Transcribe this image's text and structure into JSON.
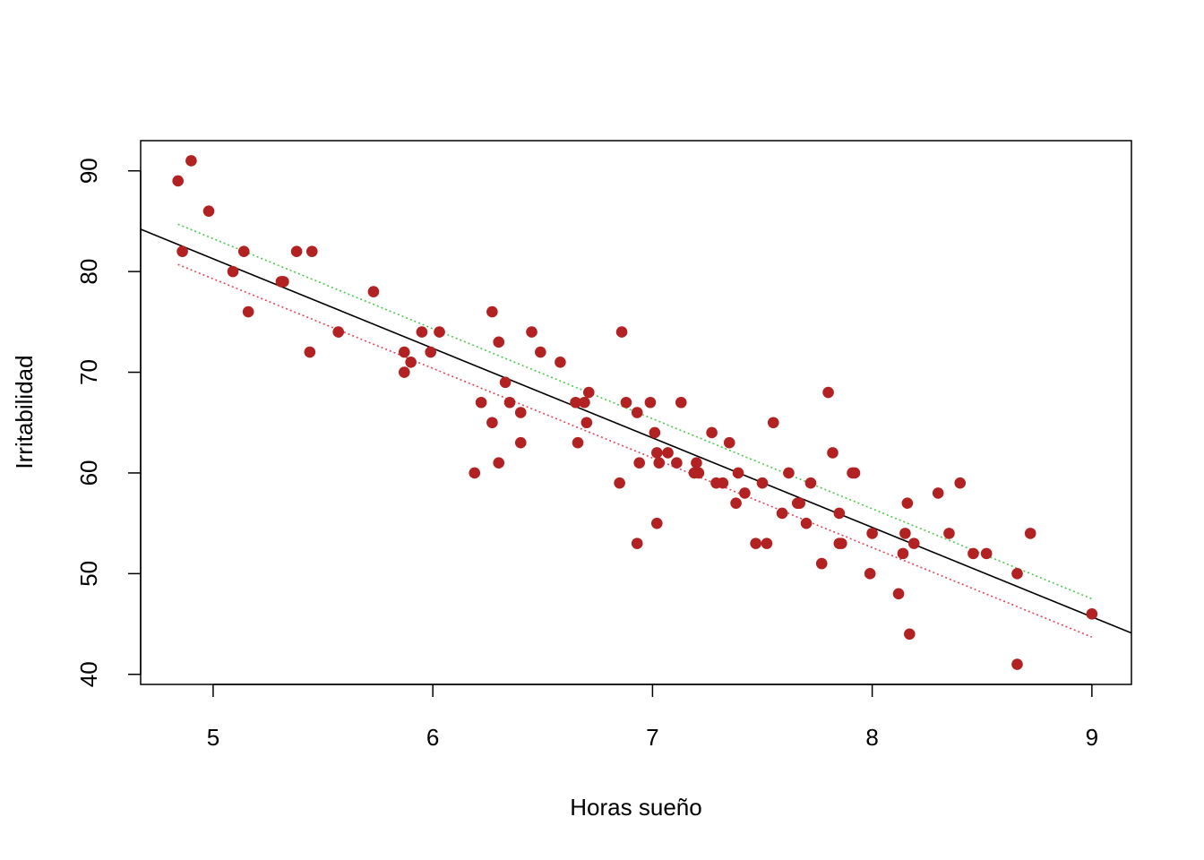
{
  "chart_data": {
    "type": "scatter",
    "title": "",
    "xlabel": "Horas sueño",
    "ylabel": "Irritabilidad",
    "xlim": [
      4.67,
      9.18
    ],
    "ylim": [
      39,
      93
    ],
    "x_ticks": [
      "5",
      "6",
      "7",
      "8",
      "9"
    ],
    "y_ticks": [
      "40",
      "50",
      "60",
      "70",
      "80",
      "90"
    ],
    "grid": false,
    "legend": "none",
    "point_color": "#b22222",
    "points": [
      {
        "x": 4.84,
        "y": 89
      },
      {
        "x": 4.9,
        "y": 91
      },
      {
        "x": 4.86,
        "y": 82
      },
      {
        "x": 4.98,
        "y": 86
      },
      {
        "x": 5.09,
        "y": 80
      },
      {
        "x": 5.14,
        "y": 82
      },
      {
        "x": 5.16,
        "y": 76
      },
      {
        "x": 5.31,
        "y": 79
      },
      {
        "x": 5.32,
        "y": 79
      },
      {
        "x": 5.38,
        "y": 82
      },
      {
        "x": 5.45,
        "y": 82
      },
      {
        "x": 5.44,
        "y": 72
      },
      {
        "x": 5.57,
        "y": 74
      },
      {
        "x": 5.73,
        "y": 78
      },
      {
        "x": 5.87,
        "y": 72
      },
      {
        "x": 5.87,
        "y": 70
      },
      {
        "x": 5.9,
        "y": 71
      },
      {
        "x": 5.95,
        "y": 74
      },
      {
        "x": 5.99,
        "y": 72
      },
      {
        "x": 6.03,
        "y": 74
      },
      {
        "x": 6.19,
        "y": 60
      },
      {
        "x": 6.22,
        "y": 67
      },
      {
        "x": 6.27,
        "y": 76
      },
      {
        "x": 6.27,
        "y": 65
      },
      {
        "x": 6.3,
        "y": 73
      },
      {
        "x": 6.3,
        "y": 61
      },
      {
        "x": 6.33,
        "y": 69
      },
      {
        "x": 6.35,
        "y": 67
      },
      {
        "x": 6.4,
        "y": 66
      },
      {
        "x": 6.4,
        "y": 63
      },
      {
        "x": 6.45,
        "y": 74
      },
      {
        "x": 6.49,
        "y": 72
      },
      {
        "x": 6.58,
        "y": 71
      },
      {
        "x": 6.65,
        "y": 67
      },
      {
        "x": 6.66,
        "y": 63
      },
      {
        "x": 6.69,
        "y": 67
      },
      {
        "x": 6.7,
        "y": 65
      },
      {
        "x": 6.71,
        "y": 68
      },
      {
        "x": 6.85,
        "y": 59
      },
      {
        "x": 6.86,
        "y": 74
      },
      {
        "x": 6.88,
        "y": 67
      },
      {
        "x": 6.93,
        "y": 66
      },
      {
        "x": 6.94,
        "y": 61
      },
      {
        "x": 6.93,
        "y": 53
      },
      {
        "x": 6.99,
        "y": 67
      },
      {
        "x": 7.01,
        "y": 64
      },
      {
        "x": 7.02,
        "y": 62
      },
      {
        "x": 7.03,
        "y": 61
      },
      {
        "x": 7.02,
        "y": 55
      },
      {
        "x": 7.07,
        "y": 62
      },
      {
        "x": 7.11,
        "y": 61
      },
      {
        "x": 7.13,
        "y": 67
      },
      {
        "x": 7.19,
        "y": 60
      },
      {
        "x": 7.2,
        "y": 61
      },
      {
        "x": 7.21,
        "y": 60
      },
      {
        "x": 7.27,
        "y": 64
      },
      {
        "x": 7.29,
        "y": 59
      },
      {
        "x": 7.32,
        "y": 59
      },
      {
        "x": 7.35,
        "y": 63
      },
      {
        "x": 7.38,
        "y": 57
      },
      {
        "x": 7.39,
        "y": 60
      },
      {
        "x": 7.42,
        "y": 58
      },
      {
        "x": 7.47,
        "y": 53
      },
      {
        "x": 7.5,
        "y": 59
      },
      {
        "x": 7.52,
        "y": 53
      },
      {
        "x": 7.55,
        "y": 65
      },
      {
        "x": 7.59,
        "y": 56
      },
      {
        "x": 7.62,
        "y": 60
      },
      {
        "x": 7.66,
        "y": 57
      },
      {
        "x": 7.67,
        "y": 57
      },
      {
        "x": 7.7,
        "y": 55
      },
      {
        "x": 7.72,
        "y": 59
      },
      {
        "x": 7.77,
        "y": 51
      },
      {
        "x": 7.8,
        "y": 68
      },
      {
        "x": 7.82,
        "y": 62
      },
      {
        "x": 7.85,
        "y": 56
      },
      {
        "x": 7.85,
        "y": 53
      },
      {
        "x": 7.86,
        "y": 53
      },
      {
        "x": 7.91,
        "y": 60
      },
      {
        "x": 7.92,
        "y": 60
      },
      {
        "x": 7.99,
        "y": 50
      },
      {
        "x": 8.0,
        "y": 54
      },
      {
        "x": 8.12,
        "y": 48
      },
      {
        "x": 8.14,
        "y": 52
      },
      {
        "x": 8.15,
        "y": 54
      },
      {
        "x": 8.16,
        "y": 57
      },
      {
        "x": 8.17,
        "y": 44
      },
      {
        "x": 8.19,
        "y": 53
      },
      {
        "x": 8.3,
        "y": 58
      },
      {
        "x": 8.35,
        "y": 54
      },
      {
        "x": 8.4,
        "y": 59
      },
      {
        "x": 8.46,
        "y": 52
      },
      {
        "x": 8.52,
        "y": 52
      },
      {
        "x": 8.66,
        "y": 50
      },
      {
        "x": 8.66,
        "y": 41
      },
      {
        "x": 8.72,
        "y": 54
      },
      {
        "x": 9.0,
        "y": 46
      }
    ],
    "lines": [
      {
        "style": "solid",
        "color": "#000000",
        "x": [
          4.67,
          9.18
        ],
        "y": [
          84.2,
          44.1
        ]
      },
      {
        "style": "dotted",
        "color": "#4dc94d",
        "x": [
          4.84,
          9.0
        ],
        "y": [
          84.7,
          47.5
        ]
      },
      {
        "style": "dotted",
        "color": "#e0455a",
        "x": [
          4.84,
          9.0
        ],
        "y": [
          80.7,
          43.7
        ]
      }
    ]
  }
}
